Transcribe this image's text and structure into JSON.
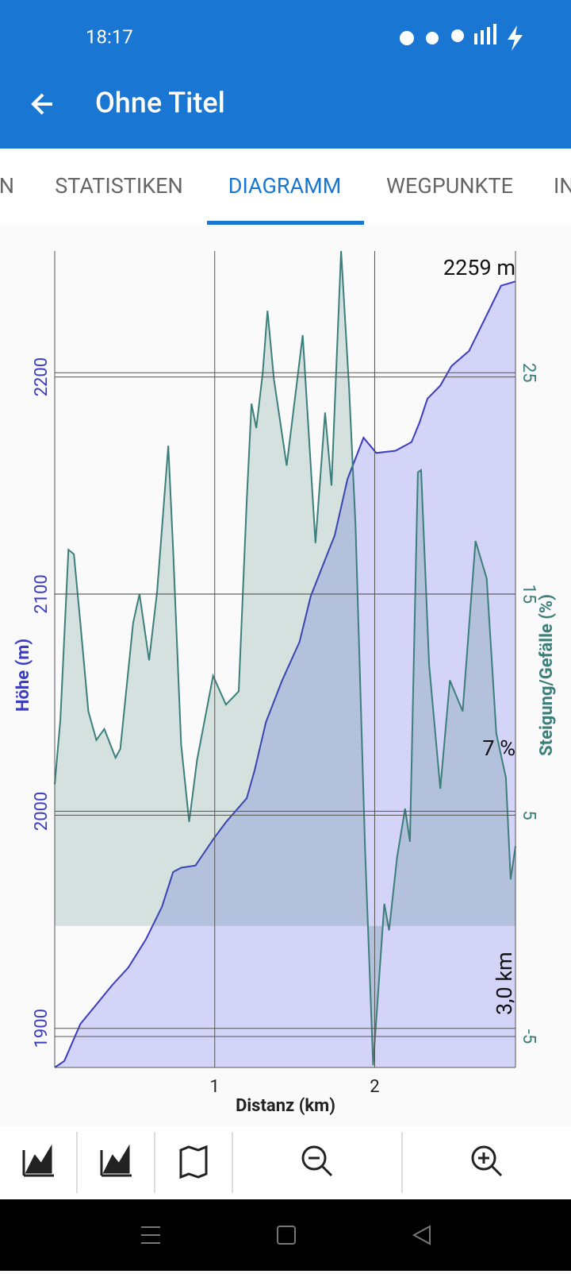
{
  "status_bar": {
    "time": "18:17"
  },
  "app_bar": {
    "title": "Ohne Titel"
  },
  "tabs": [
    "N",
    "STATISTIKEN",
    "DIAGRAMM",
    "WEGPUNKTE",
    "IN"
  ],
  "active_tab": 2,
  "chart_data": {
    "type": "area",
    "xlabel": "Distanz (km)",
    "ylabel": "Höhe (m)",
    "y2label": "Steigung/Gefälle (%)",
    "xlim": [
      0,
      2.88
    ],
    "xticks": [
      1,
      2
    ],
    "ylim": [
      1882,
      2258
    ],
    "yticks": [
      1900,
      2000,
      2100,
      2200
    ],
    "y2lim": [
      -6.4,
      30.5
    ],
    "y2ticks": [
      -5,
      5,
      15,
      25
    ],
    "grid": true,
    "annotations": [
      "2259 m",
      "7 %",
      "3,0 km"
    ],
    "series": [
      {
        "color": "#3b3bc4",
        "fill": "#d4d4f8",
        "x": [
          0,
          0.06,
          0.16,
          0.26,
          0.36,
          0.46,
          0.57,
          0.67,
          0.74,
          0.79,
          0.88,
          0.99,
          1.07,
          1.2,
          1.25,
          1.32,
          1.42,
          1.53,
          1.6,
          1.68,
          1.75,
          1.83,
          1.93,
          2.01,
          2.13,
          2.23,
          2.28,
          2.33,
          2.41,
          2.48,
          2.59,
          2.69,
          2.79,
          2.88
        ],
        "values": [
          1882,
          1885,
          1902,
          1911,
          1920,
          1928,
          1941,
          1956,
          1972,
          1974,
          1975,
          1987,
          1995,
          2006,
          2019,
          2041,
          2060,
          2078,
          2099,
          2114,
          2127,
          2153,
          2172,
          2165,
          2166,
          2170,
          2179,
          2190,
          2196,
          2205,
          2212,
          2227,
          2242,
          2244
        ]
      },
      {
        "axis": "y2",
        "color": "#3c7f7a",
        "fill": "rgba(40,110,95,0.18)",
        "x": [
          0,
          0.035,
          0.086,
          0.12,
          0.16,
          0.21,
          0.26,
          0.31,
          0.38,
          0.41,
          0.49,
          0.53,
          0.59,
          0.64,
          0.71,
          0.74,
          0.79,
          0.84,
          0.89,
          0.99,
          1.07,
          1.15,
          1.2,
          1.23,
          1.26,
          1.3,
          1.33,
          1.37,
          1.45,
          1.55,
          1.63,
          1.69,
          1.73,
          1.79,
          1.84,
          1.88,
          1.94,
          1.99,
          2.06,
          2.09,
          2.14,
          2.19,
          2.22,
          2.27,
          2.29,
          2.34,
          2.41,
          2.47,
          2.55,
          2.63,
          2.7,
          2.76,
          2.82,
          2.85,
          2.88
        ],
        "values": [
          6.4,
          9.3,
          17,
          16.8,
          13.7,
          9.7,
          8.4,
          8.9,
          7.6,
          8.0,
          13.7,
          15,
          12,
          15.1,
          21.7,
          17,
          8.2,
          4.7,
          7.5,
          11.3,
          10,
          10.6,
          19.2,
          23.6,
          22.5,
          25,
          27.8,
          24.7,
          20.8,
          26.7,
          17.3,
          23.2,
          19.9,
          30.5,
          24.3,
          18.1,
          3.4,
          -6.3,
          1.0,
          -0.2,
          3.1,
          5.3,
          3.8,
          20.5,
          20.6,
          11.8,
          6.2,
          11.1,
          9.7,
          17.4,
          15.7,
          8.7,
          6.7,
          2.1,
          3.6
        ]
      }
    ]
  }
}
